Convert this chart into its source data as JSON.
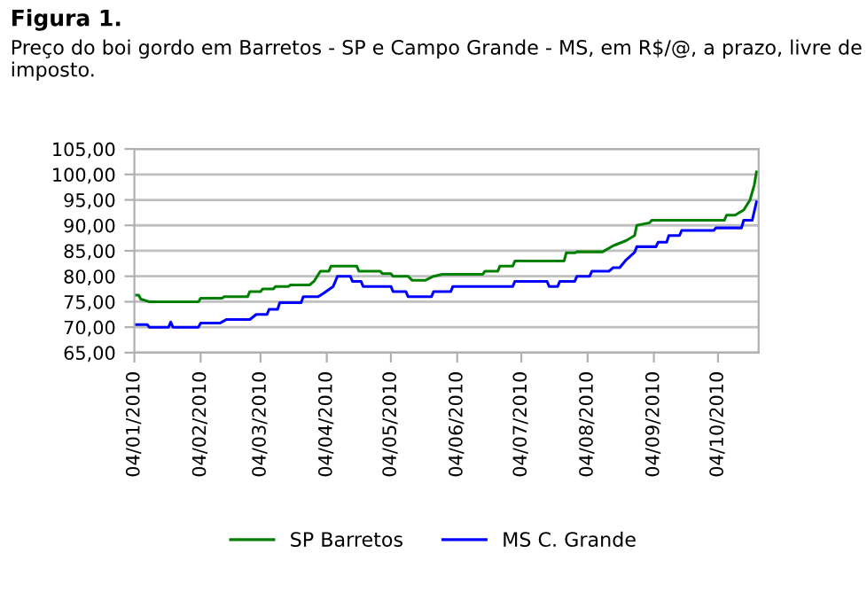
{
  "chart_data": {
    "type": "line",
    "title": "Figura 1.",
    "subtitle": "Preço do boi gordo em Barretos - SP e Campo Grande - MS, em R$/@, a prazo, livre de imposto.",
    "series": [
      {
        "name": "SP Barretos",
        "color": "#008000",
        "x": [
          "2010-01-04",
          "2010-01-06",
          "2010-01-07",
          "2010-01-11",
          "2010-02-03",
          "2010-02-04",
          "2010-02-14",
          "2010-02-15",
          "2010-02-26",
          "2010-02-27",
          "2010-03-04",
          "2010-03-05",
          "2010-03-10",
          "2010-03-11",
          "2010-03-17",
          "2010-03-18",
          "2010-03-27",
          "2010-03-29",
          "2010-04-01",
          "2010-04-05",
          "2010-04-06",
          "2010-04-18",
          "2010-04-19",
          "2010-04-29",
          "2010-04-30",
          "2010-05-04",
          "2010-05-05",
          "2010-05-12",
          "2010-05-14",
          "2010-05-20",
          "2010-05-24",
          "2010-05-28",
          "2010-06-16",
          "2010-06-17",
          "2010-06-23",
          "2010-06-24",
          "2010-06-30",
          "2010-07-01",
          "2010-07-24",
          "2010-07-25",
          "2010-07-29",
          "2010-07-30",
          "2010-08-11",
          "2010-08-16",
          "2010-08-22",
          "2010-08-26",
          "2010-08-27",
          "2010-09-02",
          "2010-09-03",
          "2010-10-07",
          "2010-10-08",
          "2010-10-12",
          "2010-10-16",
          "2010-10-19",
          "2010-10-21",
          "2010-10-22"
        ],
        "values": [
          76.3,
          76.3,
          75.5,
          75.0,
          75.0,
          75.7,
          75.7,
          76.0,
          76.0,
          77.0,
          77.0,
          77.5,
          77.5,
          78.0,
          78.0,
          78.3,
          78.3,
          79.0,
          81.0,
          81.0,
          82.0,
          82.0,
          81.0,
          81.0,
          80.5,
          80.5,
          80.0,
          80.0,
          79.2,
          79.2,
          80.0,
          80.4,
          80.4,
          81.0,
          81.0,
          82.0,
          82.0,
          83.0,
          83.0,
          84.6,
          84.6,
          84.8,
          84.8,
          86.0,
          87.0,
          88.0,
          90.0,
          90.5,
          91.0,
          91.0,
          92.0,
          92.0,
          93.0,
          95.0,
          98.0,
          100.5
        ]
      },
      {
        "name": "MS C. Grande",
        "color": "#0000ff",
        "x": [
          "2010-01-04",
          "2010-01-10",
          "2010-01-11",
          "2010-01-20",
          "2010-01-21",
          "2010-01-22",
          "2010-02-03",
          "2010-02-04",
          "2010-02-13",
          "2010-02-16",
          "2010-02-27",
          "2010-03-02",
          "2010-03-07",
          "2010-03-08",
          "2010-03-12",
          "2010-03-13",
          "2010-03-23",
          "2010-03-24",
          "2010-03-31",
          "2010-04-02",
          "2010-04-07",
          "2010-04-09",
          "2010-04-15",
          "2010-04-16",
          "2010-04-20",
          "2010-04-21",
          "2010-05-04",
          "2010-05-05",
          "2010-05-11",
          "2010-05-12",
          "2010-05-23",
          "2010-05-24",
          "2010-06-01",
          "2010-06-02",
          "2010-06-30",
          "2010-07-01",
          "2010-07-16",
          "2010-07-17",
          "2010-07-21",
          "2010-07-22",
          "2010-07-29",
          "2010-07-30",
          "2010-08-05",
          "2010-08-06",
          "2010-08-14",
          "2010-08-16",
          "2010-08-19",
          "2010-08-22",
          "2010-08-26",
          "2010-08-27",
          "2010-09-05",
          "2010-09-06",
          "2010-09-10",
          "2010-09-11",
          "2010-09-16",
          "2010-09-17",
          "2010-10-02",
          "2010-10-03",
          "2010-10-15",
          "2010-10-16",
          "2010-10-20",
          "2010-10-22"
        ],
        "values": [
          70.5,
          70.5,
          70.0,
          70.0,
          71.0,
          70.0,
          70.0,
          70.8,
          70.8,
          71.5,
          71.5,
          72.5,
          72.5,
          73.5,
          73.5,
          74.8,
          74.8,
          76.0,
          76.0,
          76.5,
          78.0,
          80.0,
          80.0,
          79.0,
          79.0,
          78.0,
          78.0,
          77.0,
          77.0,
          76.0,
          76.0,
          77.0,
          77.0,
          78.0,
          78.0,
          79.0,
          79.0,
          78.0,
          78.0,
          79.0,
          79.0,
          80.0,
          80.0,
          81.0,
          81.0,
          81.7,
          81.7,
          83.2,
          84.7,
          85.8,
          85.8,
          86.7,
          86.7,
          88.0,
          88.0,
          89.0,
          89.0,
          89.5,
          89.5,
          91.0,
          91.0,
          94.6
        ]
      }
    ],
    "xlim": [
      "2010-01-04",
      "2010-10-23"
    ],
    "xticks": [
      {
        "value": "2010-01-04",
        "label": "04/01/2010"
      },
      {
        "value": "2010-02-04",
        "label": "04/02/2010"
      },
      {
        "value": "2010-03-04",
        "label": "04/03/2010"
      },
      {
        "value": "2010-04-04",
        "label": "04/04/2010"
      },
      {
        "value": "2010-05-04",
        "label": "04/05/2010"
      },
      {
        "value": "2010-06-04",
        "label": "04/06/2010"
      },
      {
        "value": "2010-07-04",
        "label": "04/07/2010"
      },
      {
        "value": "2010-08-04",
        "label": "04/08/2010"
      },
      {
        "value": "2010-09-04",
        "label": "04/09/2010"
      },
      {
        "value": "2010-10-04",
        "label": "04/10/2010"
      }
    ],
    "ylim": [
      65,
      105
    ],
    "yticks": [
      {
        "value": 65,
        "label": "65,00"
      },
      {
        "value": 70,
        "label": "70,00"
      },
      {
        "value": 75,
        "label": "75,00"
      },
      {
        "value": 80,
        "label": "80,00"
      },
      {
        "value": 85,
        "label": "85,00"
      },
      {
        "value": 90,
        "label": "90,00"
      },
      {
        "value": 95,
        "label": "95,00"
      },
      {
        "value": 100,
        "label": "100,00"
      },
      {
        "value": 105,
        "label": "105,00"
      }
    ],
    "grid": "y",
    "legend": "bottom",
    "line_style": "solid",
    "marker": "none"
  }
}
